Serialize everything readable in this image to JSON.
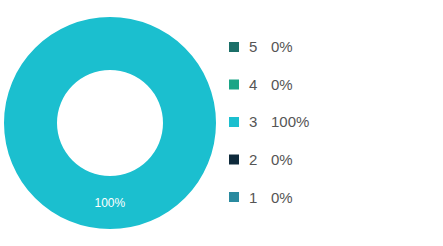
{
  "chart_data": {
    "type": "pie",
    "categories": [
      "5",
      "4",
      "3",
      "2",
      "1"
    ],
    "values": [
      0,
      0,
      100,
      0,
      0
    ],
    "value_labels": [
      "0%",
      "0%",
      "100%",
      "0%",
      "0%"
    ],
    "colors": [
      "#1b6f68",
      "#1aa586",
      "#1bbfcf",
      "#0e2a3b",
      "#2a8a9f"
    ],
    "data_labels": true,
    "legend": "right"
  }
}
